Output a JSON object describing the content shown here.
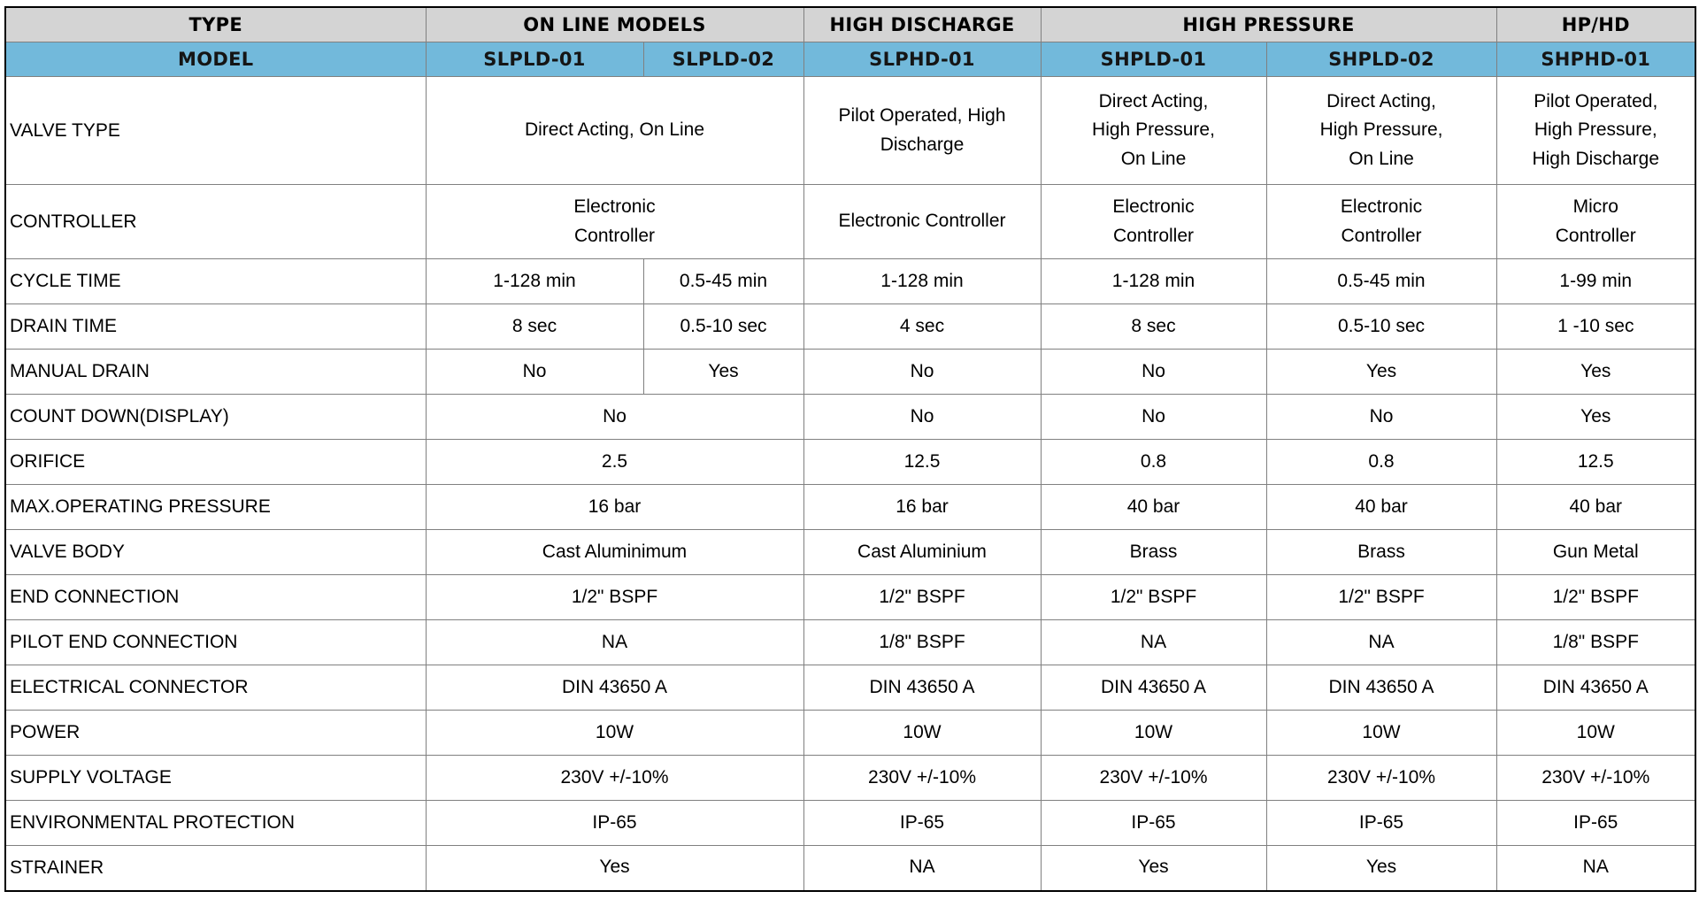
{
  "table": {
    "colors": {
      "header_gray": "#d4d4d4",
      "header_blue": "#72b9db",
      "border_inner": "#808080",
      "border_outer": "#000000"
    },
    "header_row1": [
      {
        "label": "TYPE",
        "colspan": 1
      },
      {
        "label": "ON LINE MODELS",
        "colspan": 2
      },
      {
        "label": "HIGH DISCHARGE",
        "colspan": 1
      },
      {
        "label": "HIGH PRESSURE",
        "colspan": 2
      },
      {
        "label": "HP/HD",
        "colspan": 1
      }
    ],
    "header_row2": [
      {
        "label": "MODEL"
      },
      {
        "label": "SLPLD-01"
      },
      {
        "label": "SLPLD-02"
      },
      {
        "label": "SLPHD-01"
      },
      {
        "label": "SHPLD-01"
      },
      {
        "label": "SHPLD-02"
      },
      {
        "label": "SHPHD-01"
      }
    ],
    "rows": [
      {
        "label": "VALVE TYPE",
        "height": "tall",
        "cells": [
          {
            "text": "Direct Acting, On Line",
            "colspan": 2
          },
          {
            "text": "Pilot Operated, High\nDischarge"
          },
          {
            "text": "Direct Acting,\nHigh Pressure,\nOn Line"
          },
          {
            "text": "Direct Acting,\nHigh Pressure,\nOn Line"
          },
          {
            "text": "Pilot Operated,\nHigh Pressure,\nHigh Discharge"
          }
        ]
      },
      {
        "label": "CONTROLLER",
        "height": "medium",
        "cells": [
          {
            "text": "Electronic\nController",
            "colspan": 2
          },
          {
            "text": "Electronic Controller"
          },
          {
            "text": "Electronic\nController"
          },
          {
            "text": "Electronic\nController"
          },
          {
            "text": "Micro\nController"
          }
        ]
      },
      {
        "label": "CYCLE TIME",
        "cells": [
          {
            "text": "1-128 min"
          },
          {
            "text": "0.5-45 min"
          },
          {
            "text": "1-128 min"
          },
          {
            "text": "1-128 min"
          },
          {
            "text": "0.5-45 min"
          },
          {
            "text": "1-99 min"
          }
        ]
      },
      {
        "label": "DRAIN TIME",
        "cells": [
          {
            "text": "8 sec"
          },
          {
            "text": "0.5-10 sec"
          },
          {
            "text": "4 sec"
          },
          {
            "text": "8 sec"
          },
          {
            "text": "0.5-10 sec"
          },
          {
            "text": "1 -10 sec"
          }
        ]
      },
      {
        "label": "MANUAL DRAIN",
        "cells": [
          {
            "text": "No"
          },
          {
            "text": "Yes"
          },
          {
            "text": "No"
          },
          {
            "text": "No"
          },
          {
            "text": "Yes"
          },
          {
            "text": "Yes"
          }
        ]
      },
      {
        "label": "COUNT DOWN(DISPLAY)",
        "cells": [
          {
            "text": "No",
            "colspan": 2
          },
          {
            "text": "No"
          },
          {
            "text": "No"
          },
          {
            "text": "No"
          },
          {
            "text": "Yes"
          }
        ]
      },
      {
        "label": "ORIFICE",
        "cells": [
          {
            "text": "2.5",
            "colspan": 2
          },
          {
            "text": "12.5"
          },
          {
            "text": "0.8"
          },
          {
            "text": "0.8"
          },
          {
            "text": "12.5"
          }
        ]
      },
      {
        "label": "MAX.OPERATING PRESSURE",
        "cells": [
          {
            "text": "16 bar",
            "colspan": 2
          },
          {
            "text": "16 bar"
          },
          {
            "text": "40 bar"
          },
          {
            "text": "40 bar"
          },
          {
            "text": "40 bar"
          }
        ]
      },
      {
        "label": "VALVE BODY",
        "cells": [
          {
            "text": "Cast Aluminimum",
            "colspan": 2
          },
          {
            "text": "Cast Aluminium"
          },
          {
            "text": "Brass"
          },
          {
            "text": "Brass"
          },
          {
            "text": "Gun Metal"
          }
        ]
      },
      {
        "label": "END CONNECTION",
        "cells": [
          {
            "text": "1/2\" BSPF",
            "colspan": 2
          },
          {
            "text": "1/2\" BSPF"
          },
          {
            "text": "1/2\" BSPF"
          },
          {
            "text": "1/2\" BSPF"
          },
          {
            "text": "1/2\" BSPF"
          }
        ]
      },
      {
        "label": "PILOT END CONNECTION",
        "cells": [
          {
            "text": "NA",
            "colspan": 2
          },
          {
            "text": "1/8\" BSPF"
          },
          {
            "text": "NA"
          },
          {
            "text": "NA"
          },
          {
            "text": "1/8\" BSPF"
          }
        ]
      },
      {
        "label": "ELECTRICAL CONNECTOR",
        "cells": [
          {
            "text": "DIN 43650 A",
            "colspan": 2
          },
          {
            "text": "DIN 43650 A"
          },
          {
            "text": "DIN 43650 A"
          },
          {
            "text": "DIN 43650 A"
          },
          {
            "text": "DIN 43650 A"
          }
        ]
      },
      {
        "label": "POWER",
        "cells": [
          {
            "text": "10W",
            "colspan": 2
          },
          {
            "text": "10W"
          },
          {
            "text": "10W"
          },
          {
            "text": "10W"
          },
          {
            "text": "10W"
          }
        ]
      },
      {
        "label": "SUPPLY VOLTAGE",
        "cells": [
          {
            "text": "230V +/-10%",
            "colspan": 2
          },
          {
            "text": "230V +/-10%"
          },
          {
            "text": "230V +/-10%"
          },
          {
            "text": "230V +/-10%"
          },
          {
            "text": "230V +/-10%"
          }
        ]
      },
      {
        "label": "ENVIRONMENTAL PROTECTION",
        "cells": [
          {
            "text": "IP-65",
            "colspan": 2
          },
          {
            "text": "IP-65"
          },
          {
            "text": "IP-65"
          },
          {
            "text": "IP-65"
          },
          {
            "text": "IP-65"
          }
        ]
      },
      {
        "label": "STRAINER",
        "cells": [
          {
            "text": "Yes",
            "colspan": 2
          },
          {
            "text": "NA"
          },
          {
            "text": "Yes"
          },
          {
            "text": "Yes"
          },
          {
            "text": "NA"
          }
        ]
      }
    ]
  }
}
